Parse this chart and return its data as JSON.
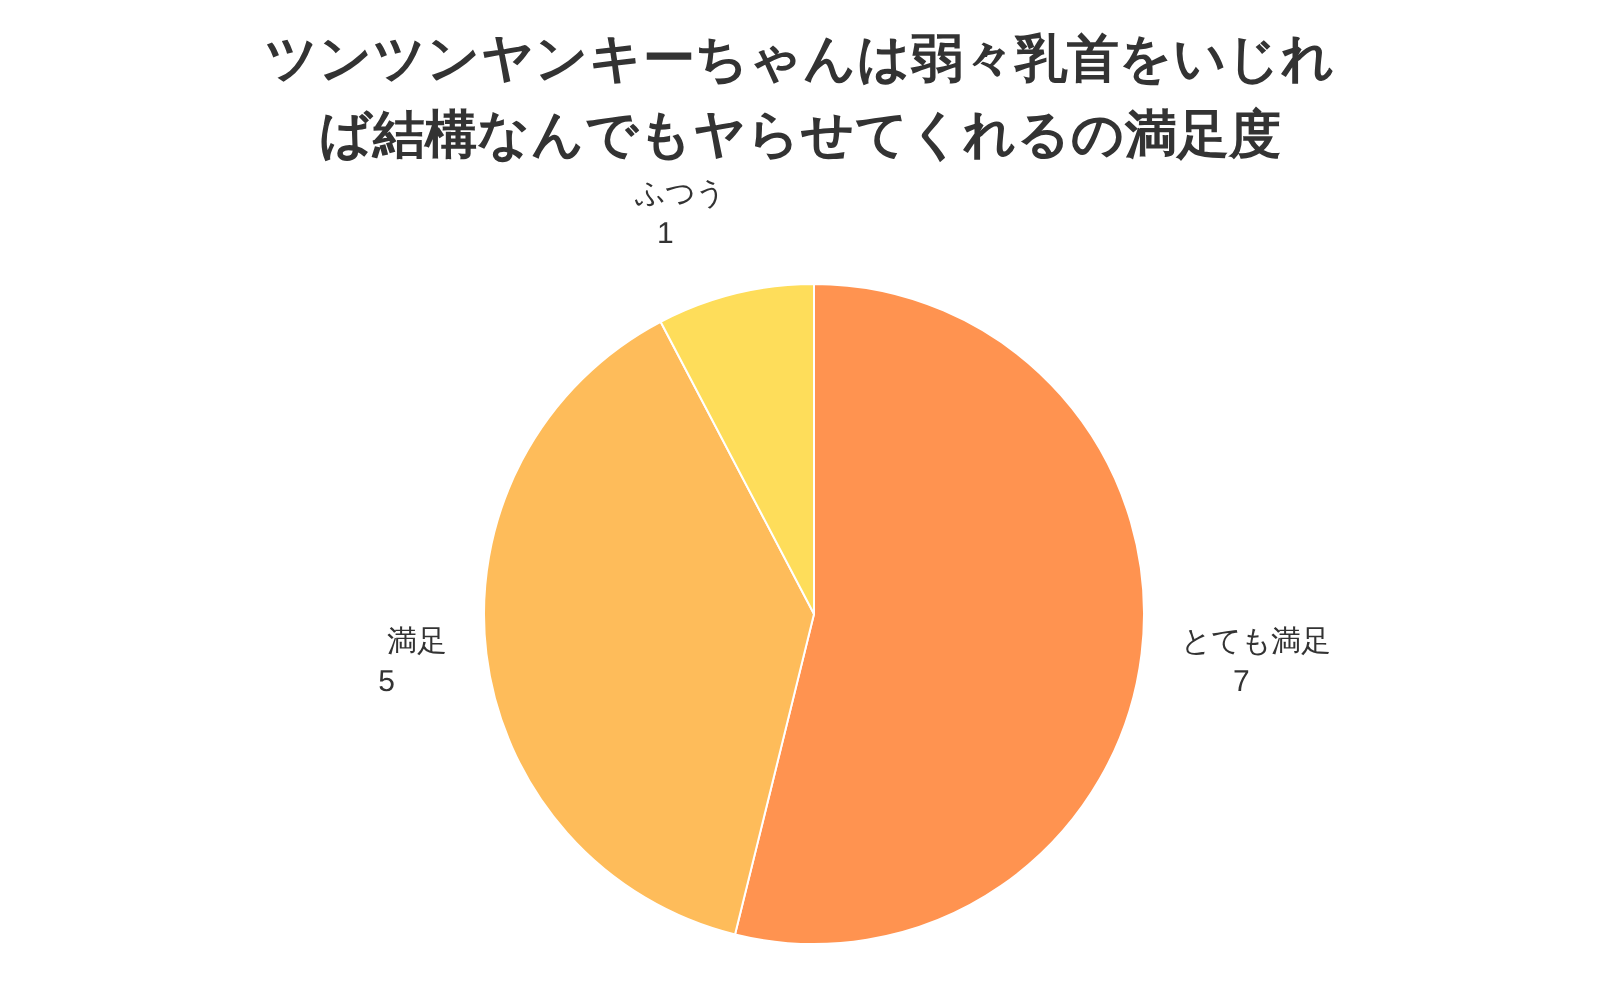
{
  "chart_data": {
    "type": "pie",
    "title": "ツンツンヤンキーちゃんは弱々乳首をいじれば結構なんでもヤらせてくれるの満足度",
    "categories": [
      "とても満足",
      "満足",
      "ふつう"
    ],
    "values": [
      7,
      5,
      1
    ],
    "colors": [
      "#ff9350",
      "#febc5a",
      "#fedd5a"
    ],
    "data_labels": true
  }
}
